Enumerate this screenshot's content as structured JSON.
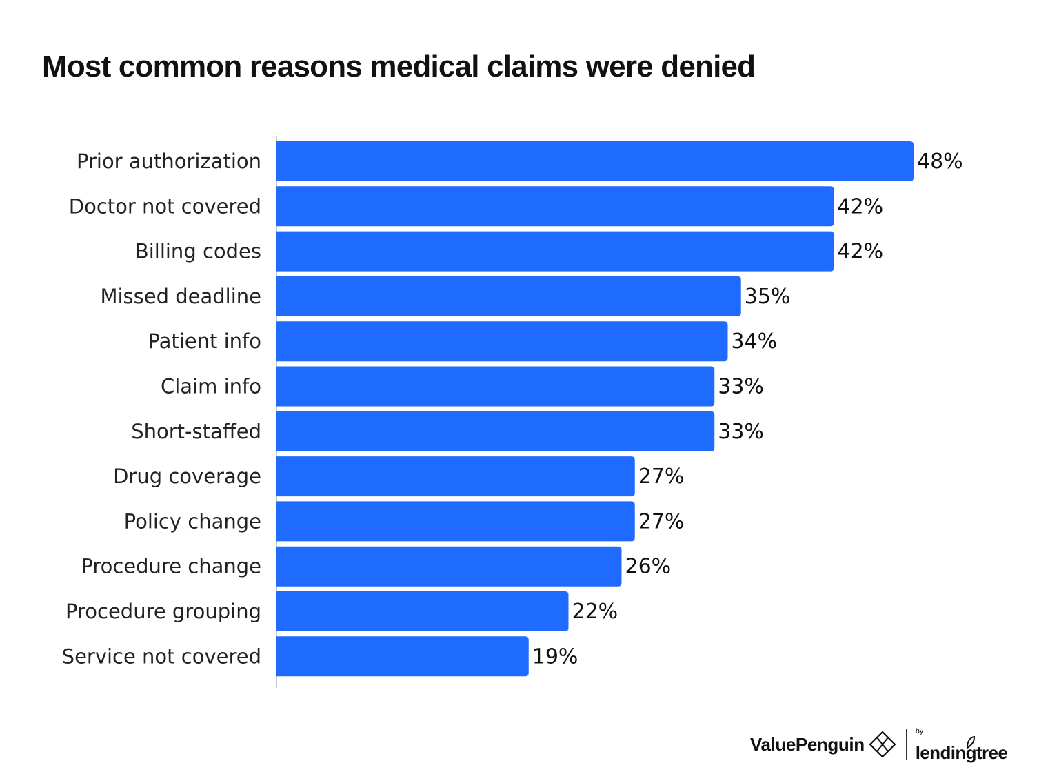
{
  "colors": {
    "bar": "#1f6bff",
    "axis": "#c8c8c8",
    "text": "#111111"
  },
  "chart_data": {
    "type": "bar",
    "orientation": "horizontal",
    "title": "Most common reasons medical claims were denied",
    "categories": [
      "Prior authorization",
      "Doctor not covered",
      "Billing codes",
      "Missed deadline",
      "Patient info",
      "Claim info",
      "Short-staffed",
      "Drug coverage",
      "Policy change",
      "Procedure change",
      "Procedure grouping",
      "Service not covered"
    ],
    "values": [
      48,
      42,
      42,
      35,
      34,
      33,
      33,
      27,
      27,
      26,
      22,
      19
    ],
    "value_labels": [
      "48%",
      "42%",
      "42%",
      "35%",
      "34%",
      "33%",
      "33%",
      "27%",
      "27%",
      "26%",
      "22%",
      "19%"
    ],
    "unit": "%",
    "xlim": [
      0,
      48
    ],
    "grid": false,
    "legend": "none"
  },
  "footer": {
    "brand": "ValuePenguin",
    "by": "by",
    "partner": "lendingtree",
    "brand_icon": "penguin-diamond-icon",
    "partner_icon": "leaf-icon"
  }
}
